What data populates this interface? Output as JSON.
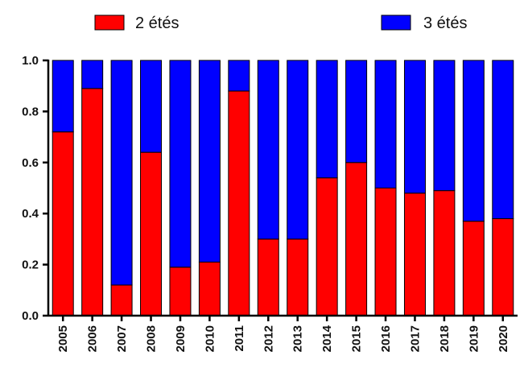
{
  "chart_data": {
    "type": "bar",
    "stacked": true,
    "categories": [
      "2005",
      "2006",
      "2007",
      "2008",
      "2009",
      "2010",
      "2011",
      "2012",
      "2013",
      "2014",
      "2015",
      "2016",
      "2017",
      "2018",
      "2019",
      "2020"
    ],
    "series": [
      {
        "name": "2 étés",
        "color": "#ff0000",
        "values": [
          0.72,
          0.89,
          0.12,
          0.64,
          0.19,
          0.21,
          0.88,
          0.3,
          0.3,
          0.54,
          0.6,
          0.5,
          0.48,
          0.49,
          0.37,
          0.38
        ]
      },
      {
        "name": "3 étés",
        "color": "#0000ff",
        "values": [
          0.28,
          0.11,
          0.88,
          0.36,
          0.81,
          0.79,
          0.12,
          0.7,
          0.7,
          0.46,
          0.4,
          0.5,
          0.52,
          0.51,
          0.63,
          0.62
        ]
      }
    ],
    "ylim": [
      0,
      1.0
    ],
    "yticks": [
      "0.0",
      "0.2",
      "0.4",
      "0.6",
      "0.8",
      "1.0"
    ],
    "ytick_values": [
      0,
      0.2,
      0.4,
      0.6,
      0.8,
      1.0
    ],
    "xlabel": "",
    "ylabel": "",
    "title": "",
    "grid": false,
    "legend_position": "top"
  }
}
